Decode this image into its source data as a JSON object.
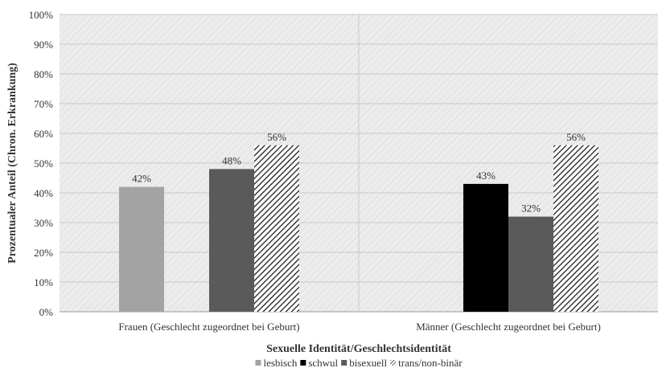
{
  "chart_data": {
    "type": "bar",
    "categories": [
      "Frauen (Geschlecht zugeordnet bei Geburt)",
      "Männer (Geschlecht zugeordnet bei Geburt)"
    ],
    "series": [
      {
        "name": "lesbisch",
        "values": [
          42,
          null
        ],
        "labels": [
          "42%",
          ""
        ],
        "color": "#a3a3a3",
        "pattern": "solid"
      },
      {
        "name": "schwul",
        "values": [
          null,
          43
        ],
        "labels": [
          "",
          "43%"
        ],
        "color": "#000000",
        "pattern": "solid"
      },
      {
        "name": "bisexuell",
        "values": [
          48,
          32
        ],
        "labels": [
          "48%",
          "32%"
        ],
        "color": "#5a5a5a",
        "pattern": "solid"
      },
      {
        "name": "trans/non-binär",
        "values": [
          56,
          56
        ],
        "labels": [
          "56%",
          "56%"
        ],
        "color": "#222222",
        "pattern": "diagonal-hatch"
      }
    ],
    "xlabel": "Sexuelle Identität/Geschlechtsidentität",
    "ylabel": "Prozentualer Anteil (Chron. Erkrankung)",
    "ylim": [
      0,
      100
    ],
    "yticks": [
      "0%",
      "10%",
      "20%",
      "30%",
      "40%",
      "50%",
      "60%",
      "70%",
      "80%",
      "90%",
      "100%"
    ],
    "grid": true,
    "legend_position": "bottom"
  }
}
